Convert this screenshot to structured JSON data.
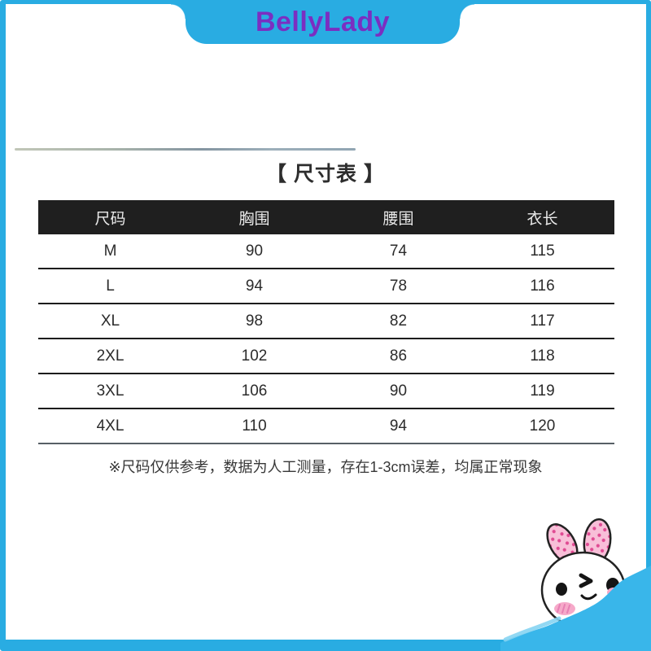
{
  "banner": {
    "brand": "BellyLady"
  },
  "title": "【 尺寸表 】",
  "table": {
    "headers": [
      "尺码",
      "胸围",
      "腰围",
      "衣长"
    ],
    "rows": [
      [
        "M",
        "90",
        "74",
        "115"
      ],
      [
        "L",
        "94",
        "78",
        "116"
      ],
      [
        "XL",
        "98",
        "82",
        "117"
      ],
      [
        "2XL",
        "102",
        "86",
        "118"
      ],
      [
        "3XL",
        "106",
        "90",
        "119"
      ],
      [
        "4XL",
        "110",
        "94",
        "120"
      ]
    ]
  },
  "note": "※尺码仅供参考，数据为人工测量，存在1-3cm误差，均属正常现象",
  "colors": {
    "frame": "#29ACE2",
    "tab": "#29ACE2",
    "brand_text": "#7B2EC1",
    "header_bg": "#1F1F1F",
    "header_text": "#EAEAEA",
    "table_text": "#2B2B2B",
    "wave": "#39B6EA",
    "ear_pink": "#F8BFD8",
    "ear_dots": "#E04A93",
    "blush": "#F6A9C9"
  },
  "mascot": {
    "name": "bunny"
  }
}
